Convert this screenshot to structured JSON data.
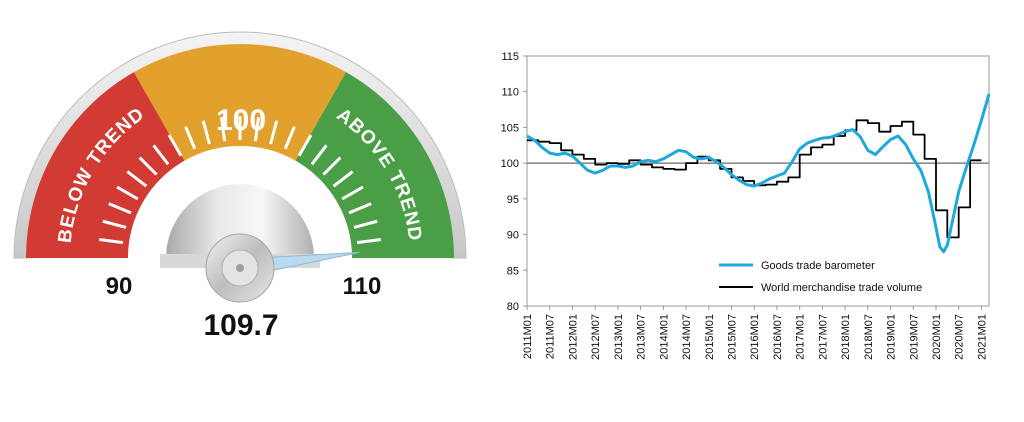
{
  "chart_data": [
    {
      "type": "gauge",
      "min_label": "90",
      "max_label": "110",
      "center_label": "100",
      "value": 109.7,
      "value_label": "109.7",
      "range": [
        90,
        110
      ],
      "zones": [
        {
          "label": "BELOW TREND",
          "from": 90,
          "to": 96.7,
          "color": "#d23a34"
        },
        {
          "label": "",
          "from": 96.7,
          "to": 103.3,
          "color": "#e2a12d"
        },
        {
          "label": "ABOVE TREND",
          "from": 103.3,
          "to": 110,
          "color": "#4a9e45"
        }
      ],
      "needle_color": "#b9d9ee"
    },
    {
      "type": "line",
      "title": "",
      "xlabel": "",
      "ylabel": "",
      "ylim": [
        80,
        115
      ],
      "yticks": [
        "80",
        "85",
        "90",
        "95",
        "100",
        "105",
        "110",
        "115"
      ],
      "xticks": [
        "2011M01",
        "2011M07",
        "2012M01",
        "2012M07",
        "2013M01",
        "2013M07",
        "2014M01",
        "2014M07",
        "2015M01",
        "2015M07",
        "2016M01",
        "2016M07",
        "2017M01",
        "2017M07",
        "2018M01",
        "2018M07",
        "2019M01",
        "2019M07",
        "2020M01",
        "2020M07",
        "2021M01"
      ],
      "reference_line": 100,
      "grid": false,
      "legend_position": "bottom-right",
      "series": [
        {
          "name": "Goods trade barometer",
          "color": "#1fa8dc",
          "points": [
            [
              0,
              103.8
            ],
            [
              2,
              103.2
            ],
            [
              4,
              102.2
            ],
            [
              6,
              101.4
            ],
            [
              8,
              101.2
            ],
            [
              10,
              101.4
            ],
            [
              12,
              101.0
            ],
            [
              14,
              100.0
            ],
            [
              16,
              99.0
            ],
            [
              18,
              98.6
            ],
            [
              20,
              99.0
            ],
            [
              22,
              99.6
            ],
            [
              24,
              99.6
            ],
            [
              26,
              99.4
            ],
            [
              28,
              99.6
            ],
            [
              30,
              100.2
            ],
            [
              32,
              100.4
            ],
            [
              34,
              100.2
            ],
            [
              36,
              100.6
            ],
            [
              38,
              101.2
            ],
            [
              40,
              101.8
            ],
            [
              42,
              101.6
            ],
            [
              44,
              100.8
            ],
            [
              46,
              100.6
            ],
            [
              48,
              100.8
            ],
            [
              50,
              100.2
            ],
            [
              52,
              99.4
            ],
            [
              54,
              98.4
            ],
            [
              56,
              97.6
            ],
            [
              58,
              97.0
            ],
            [
              60,
              96.8
            ],
            [
              62,
              97.2
            ],
            [
              64,
              97.8
            ],
            [
              66,
              98.2
            ],
            [
              68,
              98.6
            ],
            [
              70,
              100.2
            ],
            [
              72,
              102.0
            ],
            [
              74,
              102.8
            ],
            [
              76,
              103.2
            ],
            [
              78,
              103.5
            ],
            [
              80,
              103.6
            ],
            [
              82,
              104.0
            ],
            [
              84,
              104.4
            ],
            [
              86,
              104.7
            ],
            [
              88,
              103.7
            ],
            [
              90,
              101.8
            ],
            [
              92,
              101.2
            ],
            [
              94,
              102.3
            ],
            [
              96,
              103.3
            ],
            [
              98,
              103.8
            ],
            [
              100,
              102.6
            ],
            [
              102,
              100.6
            ],
            [
              104,
              99.0
            ],
            [
              106,
              96.0
            ],
            [
              108,
              91.0
            ],
            [
              109,
              88.3
            ],
            [
              110,
              87.6
            ],
            [
              111,
              88.5
            ],
            [
              112,
              91.0
            ],
            [
              114,
              96.0
            ],
            [
              116,
              99.4
            ],
            [
              118,
              102.6
            ],
            [
              120,
              106.0
            ],
            [
              122,
              109.7
            ]
          ]
        },
        {
          "name": "World merchandise trade volume",
          "color": "#000000",
          "points": [
            [
              0,
              103.2
            ],
            [
              3,
              103.2
            ],
            [
              3,
              103.0
            ],
            [
              6,
              103.0
            ],
            [
              6,
              102.8
            ],
            [
              9,
              102.8
            ],
            [
              9,
              101.8
            ],
            [
              12,
              101.8
            ],
            [
              12,
              101.2
            ],
            [
              15,
              101.2
            ],
            [
              15,
              100.6
            ],
            [
              18,
              100.6
            ],
            [
              18,
              99.8
            ],
            [
              21,
              99.8
            ],
            [
              21,
              100.0
            ],
            [
              24,
              100.0
            ],
            [
              24,
              99.9
            ],
            [
              27,
              99.9
            ],
            [
              27,
              100.4
            ],
            [
              30,
              100.4
            ],
            [
              30,
              99.8
            ],
            [
              33,
              99.8
            ],
            [
              33,
              99.4
            ],
            [
              36,
              99.4
            ],
            [
              36,
              99.2
            ],
            [
              39,
              99.2
            ],
            [
              39,
              99.1
            ],
            [
              42,
              99.1
            ],
            [
              42,
              100.0
            ],
            [
              45,
              100.0
            ],
            [
              45,
              100.9
            ],
            [
              48,
              100.9
            ],
            [
              48,
              100.4
            ],
            [
              51,
              100.4
            ],
            [
              51,
              99.2
            ],
            [
              54,
              99.2
            ],
            [
              54,
              98.0
            ],
            [
              57,
              98.0
            ],
            [
              57,
              97.5
            ],
            [
              60,
              97.5
            ],
            [
              60,
              96.9
            ],
            [
              63,
              96.9
            ],
            [
              63,
              97.0
            ],
            [
              66,
              97.0
            ],
            [
              66,
              97.4
            ],
            [
              69,
              97.4
            ],
            [
              69,
              98.0
            ],
            [
              72,
              98.0
            ],
            [
              72,
              101.2
            ],
            [
              75,
              101.2
            ],
            [
              75,
              102.2
            ],
            [
              78,
              102.2
            ],
            [
              78,
              102.6
            ],
            [
              81,
              102.6
            ],
            [
              81,
              103.8
            ],
            [
              84,
              103.8
            ],
            [
              84,
              104.6
            ],
            [
              87,
              104.6
            ],
            [
              87,
              106.0
            ],
            [
              90,
              106.0
            ],
            [
              90,
              105.6
            ],
            [
              93,
              105.6
            ],
            [
              93,
              104.4
            ],
            [
              96,
              104.4
            ],
            [
              96,
              105.2
            ],
            [
              99,
              105.2
            ],
            [
              99,
              105.8
            ],
            [
              102,
              105.8
            ],
            [
              102,
              104.0
            ],
            [
              105,
              104.0
            ],
            [
              105,
              100.6
            ],
            [
              108,
              100.6
            ],
            [
              108,
              93.4
            ],
            [
              111,
              93.4
            ],
            [
              111,
              89.6
            ],
            [
              114,
              89.6
            ],
            [
              114,
              93.8
            ],
            [
              117,
              93.8
            ],
            [
              117,
              100.4
            ],
            [
              120,
              100.4
            ]
          ]
        }
      ]
    }
  ]
}
